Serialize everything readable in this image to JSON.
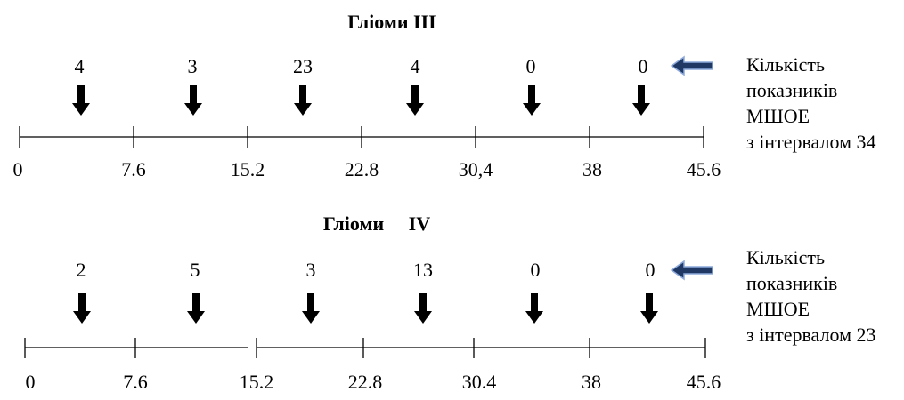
{
  "panels": [
    {
      "title": "Гліоми ІІІ",
      "counts": [
        "4",
        "3",
        "23",
        "4",
        "0",
        "0"
      ],
      "ticks": [
        "0",
        "7.6",
        "15.2",
        "22.8",
        "30,4",
        "38",
        "45.6"
      ],
      "note": [
        "Кількість",
        "показників",
        "МШОЕ",
        "з інтервалом 34"
      ]
    },
    {
      "title": "Гліоми     IV",
      "counts": [
        "2",
        "5",
        "3",
        "13",
        "0",
        "0"
      ],
      "ticks": [
        "0",
        "7.6",
        "15.2",
        "22.8",
        "30.4",
        "38",
        "45.6"
      ],
      "note": [
        "Кількість",
        "показників",
        "МШОЕ",
        "з інтервалом 23"
      ]
    }
  ],
  "colors": {
    "line": "#000000",
    "pointer_fill": "#1f3864",
    "pointer_stroke": "#8eaadb"
  },
  "icons": {
    "interval_marker": "down-arrow-icon",
    "pointer": "left-arrow-icon"
  }
}
